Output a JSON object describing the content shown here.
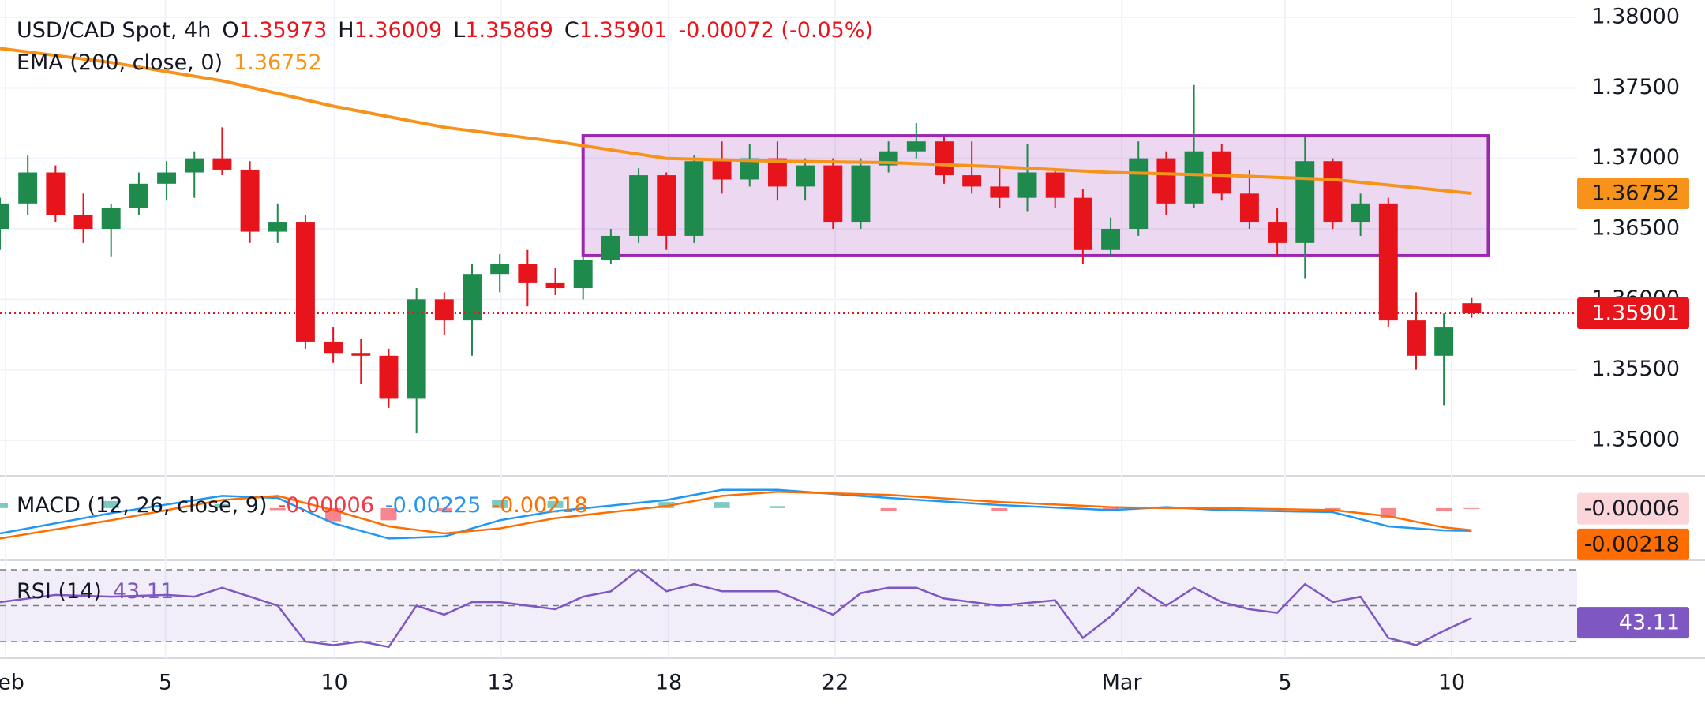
{
  "chart_data": [
    {
      "type": "candlestick",
      "title": "USD/CAD Spot, 4h",
      "ohlc_legend": [
        {
          "key": "O",
          "text": "1.35973"
        },
        {
          "key": "H",
          "text": "1.36009"
        },
        {
          "key": "L",
          "text": "1.35869"
        },
        {
          "key": "C",
          "text": "1.35901"
        }
      ],
      "change": "-0.00072 (-0.05%)",
      "up_color": "#1e8a4c",
      "down_color": "#e8141c",
      "x": [
        0,
        0.5,
        1,
        1.5,
        2,
        2.5,
        3,
        3.5,
        4,
        4.5,
        5,
        5.5,
        6,
        6.5,
        7,
        7.5,
        8,
        8.5,
        9,
        9.5,
        10,
        10.5,
        11,
        11.5,
        12,
        12.5,
        13,
        13.5,
        14,
        14.5,
        15,
        15.5,
        16,
        16.5,
        17,
        17.5,
        18,
        18.5,
        19,
        19.5,
        20,
        20.5,
        21,
        21.5,
        22,
        22.5,
        23,
        23.5,
        24,
        24.5,
        25,
        25.5,
        26,
        26.5
      ],
      "open": [
        1.365,
        1.3668,
        1.369,
        1.366,
        1.365,
        1.3665,
        1.3682,
        1.369,
        1.37,
        1.3692,
        1.3648,
        1.3655,
        1.357,
        1.3562,
        1.356,
        1.353,
        1.36,
        1.3585,
        1.3618,
        1.3625,
        1.3612,
        1.3608,
        1.3628,
        1.3645,
        1.3688,
        1.3645,
        1.3698,
        1.3685,
        1.37,
        1.368,
        1.3695,
        1.3655,
        1.3695,
        1.3705,
        1.3712,
        1.3688,
        1.368,
        1.3672,
        1.369,
        1.3672,
        1.3635,
        1.365,
        1.37,
        1.3668,
        1.3705,
        1.3675,
        1.3655,
        1.364,
        1.3698,
        1.3655,
        1.3668,
        1.3585,
        1.356,
        1.35973
      ],
      "high": [
        1.3672,
        1.3702,
        1.3695,
        1.3675,
        1.3668,
        1.369,
        1.3698,
        1.3705,
        1.3722,
        1.3698,
        1.3668,
        1.366,
        1.358,
        1.3572,
        1.3565,
        1.3608,
        1.3605,
        1.3625,
        1.3632,
        1.3635,
        1.3622,
        1.363,
        1.365,
        1.3693,
        1.369,
        1.3702,
        1.3712,
        1.371,
        1.3712,
        1.37,
        1.37,
        1.37,
        1.3712,
        1.3725,
        1.3715,
        1.3712,
        1.3695,
        1.371,
        1.3692,
        1.3678,
        1.3658,
        1.3712,
        1.3705,
        1.3752,
        1.371,
        1.3692,
        1.3665,
        1.3715,
        1.37,
        1.3675,
        1.3672,
        1.3605,
        1.359,
        1.36009
      ],
      "low": [
        1.3635,
        1.366,
        1.3655,
        1.364,
        1.363,
        1.366,
        1.367,
        1.3672,
        1.3688,
        1.364,
        1.364,
        1.3565,
        1.3555,
        1.354,
        1.3523,
        1.3505,
        1.3575,
        1.356,
        1.3605,
        1.3595,
        1.3603,
        1.36,
        1.3625,
        1.364,
        1.3635,
        1.364,
        1.3675,
        1.368,
        1.367,
        1.367,
        1.365,
        1.365,
        1.369,
        1.37,
        1.3682,
        1.3675,
        1.3665,
        1.3662,
        1.3665,
        1.3625,
        1.363,
        1.3645,
        1.366,
        1.3665,
        1.367,
        1.365,
        1.363,
        1.3615,
        1.365,
        1.3645,
        1.358,
        1.355,
        1.3525,
        1.35869
      ],
      "close": [
        1.3668,
        1.369,
        1.366,
        1.365,
        1.3665,
        1.3682,
        1.369,
        1.37,
        1.3692,
        1.3648,
        1.3655,
        1.357,
        1.3562,
        1.356,
        1.353,
        1.36,
        1.3585,
        1.3618,
        1.3625,
        1.3612,
        1.3608,
        1.3628,
        1.3645,
        1.3688,
        1.3645,
        1.3698,
        1.3685,
        1.37,
        1.368,
        1.3695,
        1.3655,
        1.3695,
        1.3705,
        1.3712,
        1.3688,
        1.368,
        1.3672,
        1.369,
        1.3672,
        1.3635,
        1.365,
        1.37,
        1.3668,
        1.3705,
        1.3675,
        1.3655,
        1.364,
        1.3698,
        1.3655,
        1.3668,
        1.3585,
        1.356,
        1.358,
        1.35901
      ],
      "last_label": "1.35901",
      "ema": {
        "name": "EMA (200, close, 0)",
        "color": "#f7931a",
        "value_label": "1.36752",
        "x": [
          0,
          2,
          4,
          6,
          8,
          10,
          12,
          14,
          16,
          18,
          20,
          22,
          24,
          26.5
        ],
        "values": [
          1.3778,
          1.3768,
          1.3755,
          1.3737,
          1.3722,
          1.3712,
          1.37,
          1.3698,
          1.3697,
          1.3694,
          1.369,
          1.3688,
          1.3685,
          1.36752
        ]
      },
      "box": {
        "x": [
          10.5,
          26.8
        ],
        "y": [
          1.3631,
          1.3716
        ],
        "color": "#9c27b0"
      },
      "xlim": [
        0,
        28.4
      ],
      "ylim": [
        1.34765,
        1.38123
      ],
      "xticks": [
        {
          "value": 0.1,
          "label": "Feb"
        },
        {
          "value": 2.98,
          "label": "5"
        },
        {
          "value": 6.02,
          "label": "10"
        },
        {
          "value": 9.02,
          "label": "13"
        },
        {
          "value": 12.04,
          "label": "18"
        },
        {
          "value": 15.04,
          "label": "22"
        },
        {
          "value": 20.2,
          "label": "Mar"
        },
        {
          "value": 23.14,
          "label": "5"
        },
        {
          "value": 26.14,
          "label": "10"
        }
      ],
      "yticks": [
        {
          "value": 1.35,
          "label": "1.35000"
        },
        {
          "value": 1.355,
          "label": "1.35500"
        },
        {
          "value": 1.36,
          "label": "1.36000"
        },
        {
          "value": 1.365,
          "label": "1.36500"
        },
        {
          "value": 1.37,
          "label": "1.37000"
        },
        {
          "value": 1.375,
          "label": "1.37500"
        },
        {
          "value": 1.38,
          "label": "1.38000"
        }
      ],
      "grid": true
    },
    {
      "type": "macd",
      "title": "MACD (12, 26, close, 9)",
      "x": [
        0,
        2,
        4,
        5,
        6,
        7,
        8,
        9,
        10,
        12,
        13,
        14,
        16,
        18,
        20,
        21,
        22,
        24,
        25,
        26,
        26.5
      ],
      "histogram": {
        "up_color": "#26a69a",
        "down_color": "#f23645",
        "value_label": "-0.00006",
        "values": [
          0.0005,
          0.0007,
          0.0004,
          -0.0002,
          -0.0013,
          -0.0012,
          -0.0003,
          0.0008,
          0.0007,
          0.0006,
          0.0006,
          0.0002,
          -0.0003,
          -0.0003,
          -0.0003,
          0.0001,
          -0.0002,
          -0.0002,
          -0.001,
          -0.0003,
          -6e-05
        ]
      },
      "macd": {
        "color": "#2196f3",
        "value_label": "-0.00225",
        "values": [
          -0.0025,
          -0.0005,
          0.0012,
          0.001,
          -0.0015,
          -0.003,
          -0.0028,
          -0.0012,
          -0.0003,
          0.0008,
          0.0018,
          0.0018,
          0.001,
          0.0003,
          -0.0002,
          0.0001,
          -0.0002,
          -0.0004,
          -0.0018,
          -0.0022,
          -0.00225
        ]
      },
      "signal": {
        "color": "#ff6d00",
        "value_label": "-0.00218",
        "values": [
          -0.003,
          -0.0012,
          0.0008,
          0.0012,
          -0.0002,
          -0.0018,
          -0.0025,
          -0.002,
          -0.001,
          0.0002,
          0.0012,
          0.0016,
          0.0013,
          0.0006,
          0.0001,
          0.0,
          0.0,
          -0.0002,
          -0.0008,
          -0.0019,
          -0.00218
        ]
      },
      "ylim": [
        -0.0046,
        0.0024
      ]
    },
    {
      "type": "line",
      "title": "RSI (14)",
      "color": "#7e57c2",
      "value_label": "43.11",
      "x": [
        0,
        1,
        2,
        3,
        3.5,
        4,
        4.5,
        5,
        5.5,
        6,
        6.5,
        7,
        7.5,
        8,
        8.5,
        9,
        10,
        10.5,
        11,
        11.5,
        12,
        12.5,
        13,
        14,
        15,
        15.5,
        16,
        16.5,
        17,
        18,
        19,
        19.5,
        20,
        20.5,
        21,
        21.5,
        22,
        22.5,
        23,
        23.5,
        24,
        24.5,
        25,
        25.5,
        26,
        26.5
      ],
      "values": [
        52,
        56,
        55,
        56,
        55,
        60,
        55,
        50,
        30,
        28,
        30,
        27,
        50,
        45,
        52,
        52,
        48,
        55,
        58,
        70,
        58,
        62,
        58,
        58,
        45,
        57,
        60,
        60,
        54,
        50,
        53,
        32,
        44,
        60,
        50,
        60,
        52,
        48,
        46,
        62,
        52,
        55,
        32,
        28,
        36,
        43.11
      ],
      "levels": [
        30,
        50,
        70
      ],
      "ylim": [
        22.5,
        75.3
      ]
    }
  ]
}
